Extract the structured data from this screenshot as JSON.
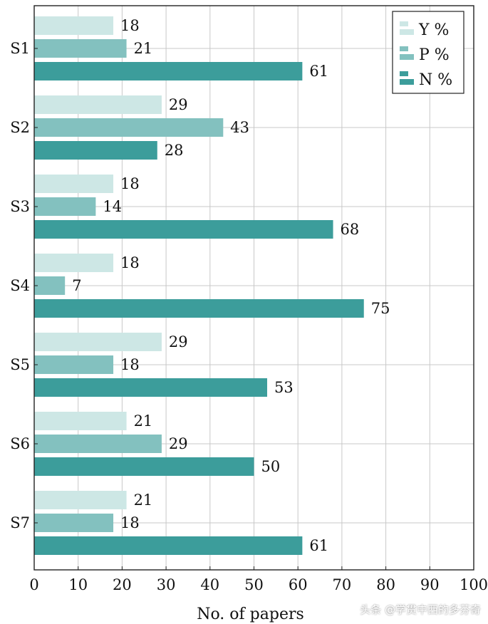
{
  "chart_data": {
    "type": "bar",
    "orientation": "horizontal",
    "title": "",
    "xlabel": "No. of papers",
    "ylabel": "",
    "xlim": [
      0,
      100
    ],
    "xticks": [
      0,
      10,
      20,
      30,
      40,
      50,
      60,
      70,
      80,
      90,
      100
    ],
    "grid": true,
    "legend_position": "top-right",
    "categories": [
      "S1",
      "S2",
      "S3",
      "S4",
      "S5",
      "S6",
      "S7"
    ],
    "series": [
      {
        "name": "Y %",
        "color": "#cde7e5",
        "values": [
          18,
          29,
          18,
          18,
          29,
          21,
          21
        ]
      },
      {
        "name": "P %",
        "color": "#83c1bf",
        "values": [
          21,
          43,
          14,
          7,
          18,
          29,
          18
        ]
      },
      {
        "name": "N %",
        "color": "#3c9d9b",
        "values": [
          61,
          28,
          68,
          75,
          53,
          50,
          61
        ]
      }
    ]
  },
  "watermark": "头条 @学贯中西的多芬奇"
}
